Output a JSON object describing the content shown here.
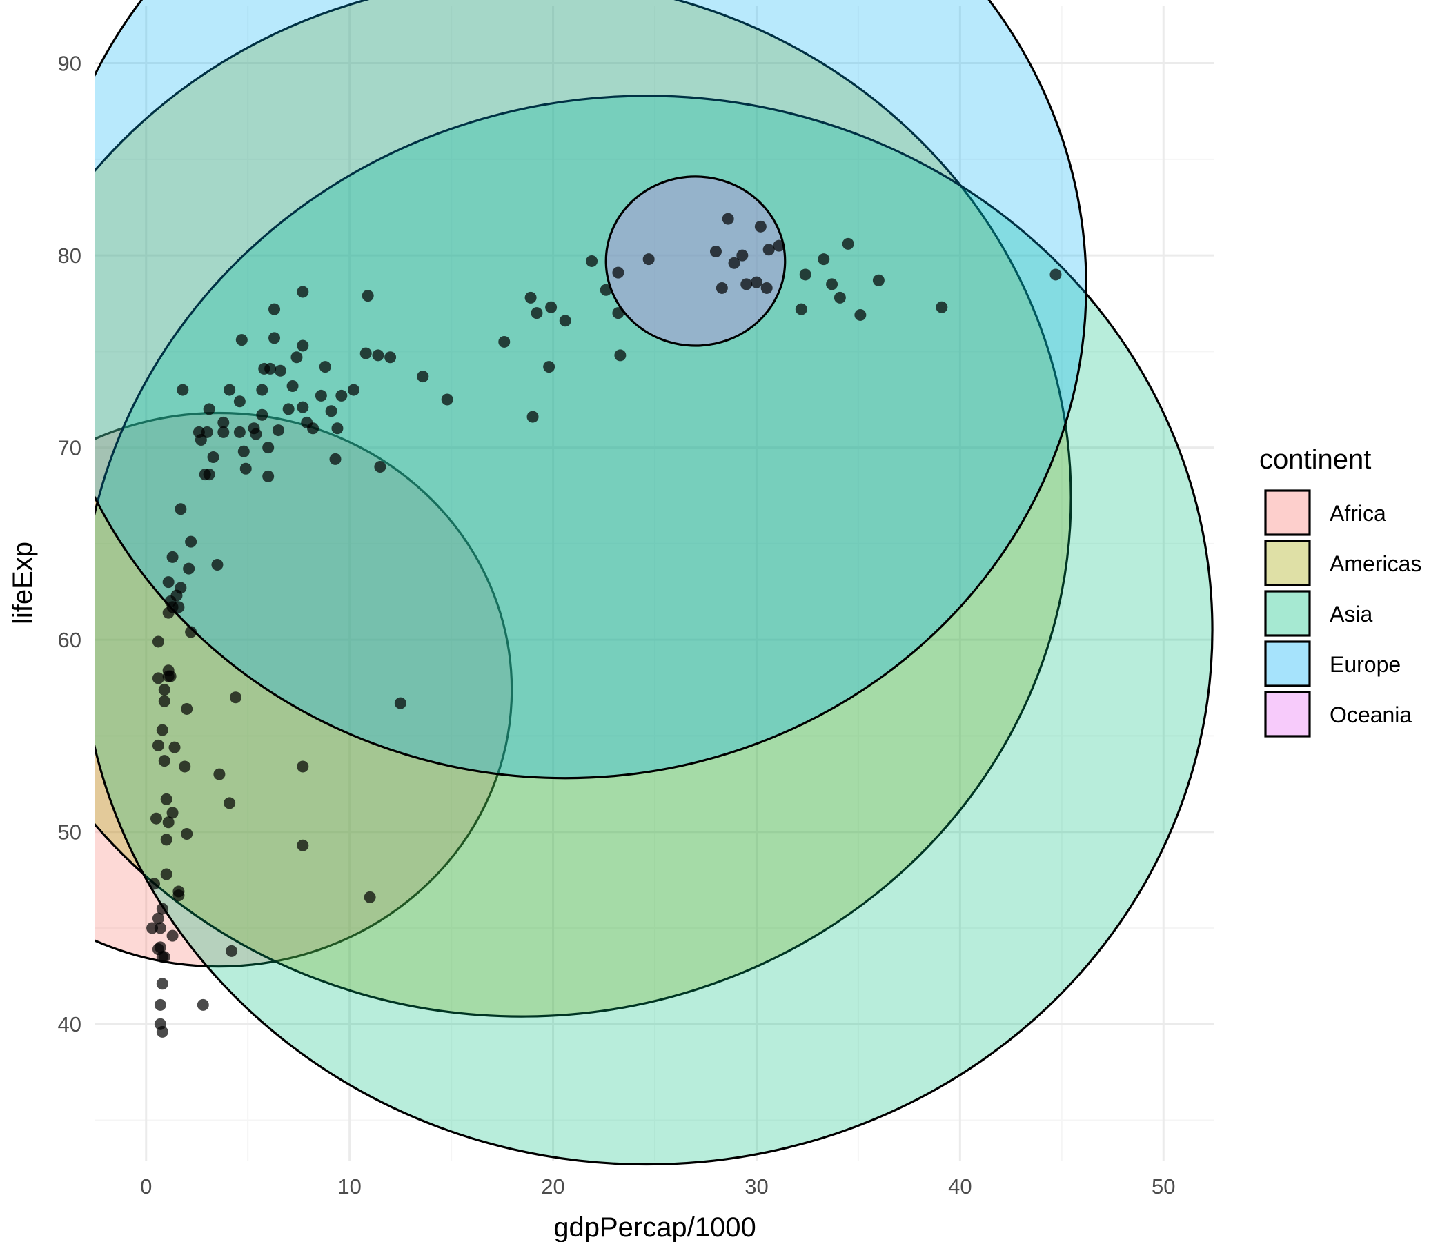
{
  "chart_data": {
    "type": "scatter",
    "title": "",
    "xlabel": "gdpPercap/1000",
    "ylabel": "lifeExp",
    "xlim": [
      -2.5,
      52.5
    ],
    "ylim": [
      32.9,
      93.0
    ],
    "x_ticks": [
      0,
      10,
      20,
      30,
      40,
      50
    ],
    "x_tick_labels": [
      "0",
      "10",
      "20",
      "30",
      "40",
      "50"
    ],
    "y_ticks": [
      40,
      50,
      60,
      70,
      80,
      90
    ],
    "y_tick_labels": [
      "40",
      "50",
      "60",
      "70",
      "80",
      "90"
    ],
    "grid": true,
    "legend": {
      "title": "continent",
      "position": "right",
      "entries": [
        "Africa",
        "Americas",
        "Asia",
        "Europe",
        "Oceania"
      ]
    },
    "colors": {
      "Africa": "#F8766D",
      "Americas": "#A3A500",
      "Asia": "#00BF7D",
      "Europe": "#00B0F6",
      "Oceania": "#E76BF3",
      "points": "#000000",
      "grid_major": "#ebebeb",
      "grid_minor": "#f5f5f5"
    },
    "circles": [
      {
        "continent": "Africa",
        "cx": 3.57,
        "cy": 57.4,
        "r": 14.4
      },
      {
        "continent": "Americas",
        "cx": 18.45,
        "cy": 67.4,
        "r": 27.0
      },
      {
        "continent": "Asia",
        "cx": 24.6,
        "cy": 60.5,
        "r": 27.8
      },
      {
        "continent": "Europe",
        "cx": 20.6,
        "cy": 78.4,
        "r": 25.6
      },
      {
        "continent": "Oceania",
        "cx": 27.0,
        "cy": 79.7,
        "r": 4.4
      }
    ],
    "points": [
      [
        0.8,
        39.6
      ],
      [
        0.8,
        42.1
      ],
      [
        0.7,
        41.0
      ],
      [
        0.7,
        40.0
      ],
      [
        0.8,
        43.5
      ],
      [
        0.7,
        44.0
      ],
      [
        0.6,
        43.9
      ],
      [
        0.9,
        43.5
      ],
      [
        0.3,
        45.0
      ],
      [
        0.7,
        45.0
      ],
      [
        0.8,
        46.0
      ],
      [
        0.6,
        45.5
      ],
      [
        1.3,
        44.6
      ],
      [
        1.0,
        47.8
      ],
      [
        0.4,
        47.3
      ],
      [
        1.6,
        46.7
      ],
      [
        1.6,
        46.9
      ],
      [
        1.0,
        49.6
      ],
      [
        2.0,
        49.9
      ],
      [
        0.5,
        50.7
      ],
      [
        1.0,
        51.7
      ],
      [
        1.1,
        50.5
      ],
      [
        1.3,
        51.0
      ],
      [
        0.9,
        53.7
      ],
      [
        0.6,
        54.5
      ],
      [
        1.4,
        54.4
      ],
      [
        0.8,
        55.3
      ],
      [
        1.9,
        53.4
      ],
      [
        0.9,
        56.8
      ],
      [
        0.9,
        57.4
      ],
      [
        0.6,
        58.0
      ],
      [
        1.1,
        58.1
      ],
      [
        1.2,
        58.1
      ],
      [
        1.1,
        58.4
      ],
      [
        0.6,
        59.9
      ],
      [
        2.0,
        56.4
      ],
      [
        1.1,
        61.4
      ],
      [
        1.6,
        61.7
      ],
      [
        1.3,
        61.7
      ],
      [
        1.2,
        62.0
      ],
      [
        1.5,
        62.3
      ],
      [
        1.7,
        62.7
      ],
      [
        1.1,
        63.0
      ],
      [
        2.1,
        63.7
      ],
      [
        1.3,
        64.3
      ],
      [
        2.2,
        65.1
      ],
      [
        1.7,
        66.8
      ],
      [
        2.2,
        60.4
      ],
      [
        3.3,
        69.5
      ],
      [
        2.7,
        70.4
      ],
      [
        2.6,
        70.8
      ],
      [
        3.0,
        70.8
      ],
      [
        2.9,
        68.6
      ],
      [
        3.1,
        68.6
      ],
      [
        3.1,
        72.0
      ],
      [
        1.8,
        73.0
      ],
      [
        3.8,
        71.3
      ],
      [
        3.8,
        70.8
      ],
      [
        4.1,
        73.0
      ],
      [
        4.6,
        72.4
      ],
      [
        4.7,
        75.6
      ],
      [
        4.6,
        70.8
      ],
      [
        4.8,
        69.8
      ],
      [
        4.9,
        68.9
      ],
      [
        5.3,
        71.0
      ],
      [
        5.4,
        70.7
      ],
      [
        5.7,
        73.0
      ],
      [
        5.8,
        74.1
      ],
      [
        5.7,
        71.7
      ],
      [
        6.0,
        70.0
      ],
      [
        6.0,
        68.5
      ],
      [
        6.1,
        74.1
      ],
      [
        6.3,
        75.7
      ],
      [
        6.3,
        77.2
      ],
      [
        6.5,
        70.9
      ],
      [
        6.6,
        74.0
      ],
      [
        7.0,
        72.0
      ],
      [
        7.2,
        73.2
      ],
      [
        7.4,
        74.7
      ],
      [
        7.7,
        75.3
      ],
      [
        7.7,
        72.1
      ],
      [
        7.9,
        71.3
      ],
      [
        8.2,
        71.0
      ],
      [
        8.6,
        72.7
      ],
      [
        8.8,
        74.2
      ],
      [
        9.1,
        71.9
      ],
      [
        9.3,
        69.4
      ],
      [
        9.4,
        71.0
      ],
      [
        9.6,
        72.7
      ],
      [
        10.2,
        73.0
      ],
      [
        10.8,
        74.9
      ],
      [
        11.4,
        74.8
      ],
      [
        12.0,
        74.7
      ],
      [
        13.6,
        73.7
      ],
      [
        14.8,
        72.5
      ],
      [
        11.5,
        69.0
      ],
      [
        7.7,
        78.1
      ],
      [
        10.9,
        77.9
      ],
      [
        3.5,
        63.9
      ],
      [
        4.4,
        57.0
      ],
      [
        3.6,
        53.0
      ],
      [
        4.1,
        51.5
      ],
      [
        7.7,
        53.4
      ],
      [
        7.7,
        49.3
      ],
      [
        11.0,
        46.6
      ],
      [
        12.5,
        56.7
      ],
      [
        4.2,
        43.8
      ],
      [
        2.8,
        41.0
      ],
      [
        17.6,
        75.5
      ],
      [
        18.9,
        77.8
      ],
      [
        19.2,
        77.0
      ],
      [
        19.9,
        77.3
      ],
      [
        20.6,
        76.6
      ],
      [
        19.8,
        74.2
      ],
      [
        19.0,
        71.6
      ],
      [
        23.3,
        74.8
      ],
      [
        21.9,
        79.7
      ],
      [
        22.6,
        78.2
      ],
      [
        23.2,
        79.1
      ],
      [
        23.2,
        77.0
      ],
      [
        24.7,
        79.8
      ],
      [
        28.0,
        80.2
      ],
      [
        28.6,
        81.9
      ],
      [
        28.9,
        79.6
      ],
      [
        29.3,
        80.0
      ],
      [
        29.5,
        78.5
      ],
      [
        30.0,
        78.6
      ],
      [
        30.2,
        81.5
      ],
      [
        30.5,
        78.3
      ],
      [
        30.6,
        80.3
      ],
      [
        31.1,
        80.5
      ],
      [
        28.3,
        78.3
      ],
      [
        32.2,
        77.2
      ],
      [
        32.4,
        79.0
      ],
      [
        33.3,
        79.8
      ],
      [
        33.7,
        78.5
      ],
      [
        34.1,
        77.8
      ],
      [
        34.5,
        80.6
      ],
      [
        35.1,
        76.9
      ],
      [
        36.0,
        78.7
      ],
      [
        39.1,
        77.3
      ],
      [
        44.7,
        79.0
      ]
    ]
  }
}
